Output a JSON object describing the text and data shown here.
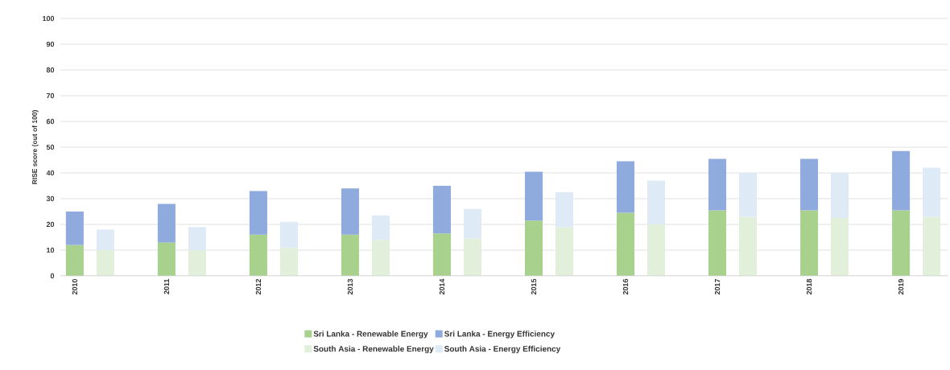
{
  "chart_data": {
    "type": "bar",
    "stacked": true,
    "ylabel": "RISE score (out of 100)",
    "categories": [
      "2010",
      null,
      null,
      "2011",
      null,
      null,
      "2012",
      null,
      null,
      "2013",
      null,
      null,
      "2014",
      null,
      null,
      "2015",
      null,
      null,
      "2016",
      null,
      null,
      "2017",
      null,
      null,
      "2018",
      null,
      null,
      "2019",
      null
    ],
    "series": [
      {
        "name": "Sri Lanka - Renewable Energy",
        "color": "#a9d18e",
        "values": [
          12,
          null,
          null,
          13,
          null,
          null,
          16,
          null,
          null,
          16,
          null,
          null,
          16.5,
          null,
          null,
          21.5,
          null,
          null,
          24.5,
          null,
          null,
          25.5,
          null,
          null,
          25.5,
          null,
          null,
          25.5,
          null
        ]
      },
      {
        "name": "Sri Lanka - Energy Efficiency",
        "color": "#8faadc",
        "values": [
          13,
          null,
          null,
          15,
          null,
          null,
          17,
          null,
          null,
          18,
          null,
          null,
          18.5,
          null,
          null,
          19,
          null,
          null,
          20,
          null,
          null,
          20,
          null,
          null,
          20,
          null,
          null,
          23,
          null
        ]
      },
      {
        "name": "South Asia - Renewable Energy",
        "color": "#e2efda",
        "values": [
          null,
          10,
          null,
          null,
          10,
          null,
          null,
          11,
          null,
          null,
          14,
          null,
          null,
          14.5,
          null,
          null,
          19,
          null,
          null,
          20,
          null,
          null,
          23,
          null,
          null,
          22.5,
          null,
          null,
          23
        ]
      },
      {
        "name": "South Asia - Energy Efficiency",
        "color": "#deebf7",
        "values": [
          null,
          8,
          null,
          null,
          9,
          null,
          null,
          10,
          null,
          null,
          9.5,
          null,
          null,
          11.5,
          null,
          null,
          13.5,
          null,
          null,
          17,
          null,
          null,
          17,
          null,
          null,
          17.5,
          null,
          null,
          19
        ]
      }
    ],
    "ylim": [
      0,
      100
    ],
    "yticks": [
      0,
      10,
      20,
      30,
      40,
      50,
      60,
      70,
      80,
      90,
      100
    ],
    "grid": "y",
    "legend": "bottom"
  }
}
